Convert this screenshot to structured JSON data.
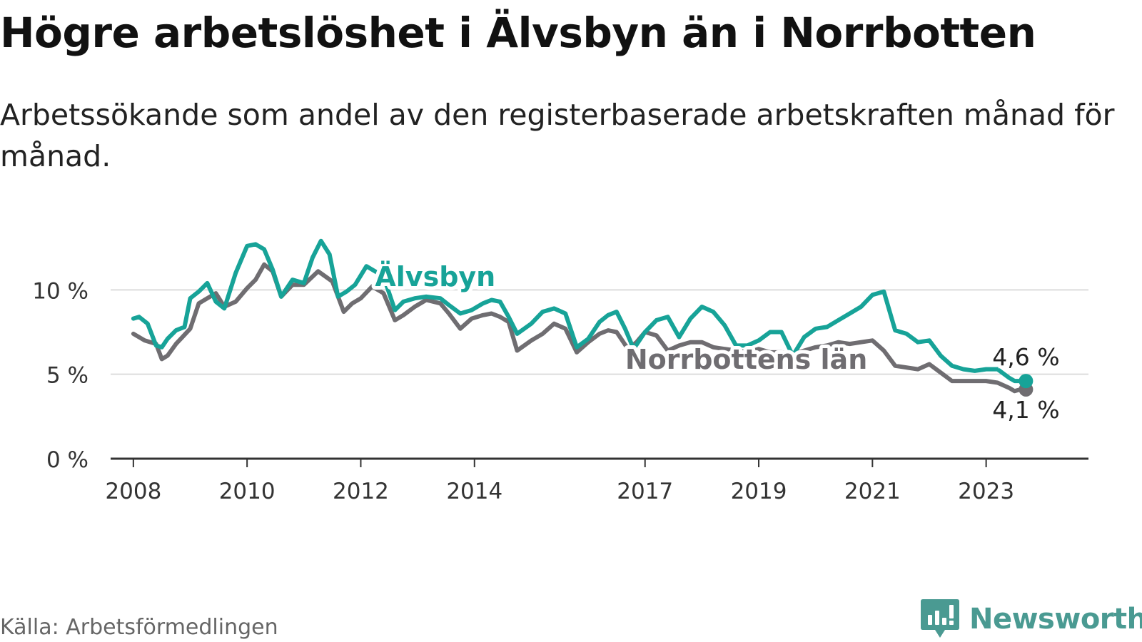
{
  "title": "Högre arbetslöshet i Älvsbyn än i Norrbotten",
  "subtitle": "Arbetssökande som andel av den registerbaserade arbetskraften månad för månad.",
  "source": "Källa: Arbetsförmedlingen",
  "brand": "Newsworthy",
  "colors": {
    "alvsbyn": "#17a398",
    "norrbotten": "#6f6d71",
    "grid": "#dcdcdc",
    "axis": "#333333",
    "brand": "#4a9a92"
  },
  "chart_data": {
    "type": "line",
    "title": "Högre arbetslöshet i Älvsbyn än i Norrbotten",
    "xlabel": "",
    "ylabel": "",
    "x_range": [
      2007.6,
      2024.8
    ],
    "ylim": [
      0,
      15
    ],
    "grid": true,
    "y_ticks": [
      {
        "value": 0,
        "label": "0 %"
      },
      {
        "value": 5,
        "label": "5 %"
      },
      {
        "value": 10,
        "label": "10 %"
      }
    ],
    "x_ticks": [
      {
        "value": 2008,
        "label": "2008"
      },
      {
        "value": 2010,
        "label": "2010"
      },
      {
        "value": 2012,
        "label": "2012"
      },
      {
        "value": 2014,
        "label": "2014"
      },
      {
        "value": 2017,
        "label": "2017"
      },
      {
        "value": 2019,
        "label": "2019"
      },
      {
        "value": 2021,
        "label": "2021"
      },
      {
        "value": 2023,
        "label": "2023"
      }
    ],
    "series": [
      {
        "name": "Norrbottens län",
        "label": "Norrbottens län",
        "color": "#6f6d71",
        "end_label": "4,1 %",
        "x": [
          2008.0,
          2008.2,
          2008.4,
          2008.5,
          2008.6,
          2008.75,
          2009.0,
          2009.15,
          2009.3,
          2009.45,
          2009.6,
          2009.8,
          2010.0,
          2010.15,
          2010.3,
          2010.45,
          2010.6,
          2010.8,
          2011.0,
          2011.25,
          2011.5,
          2011.7,
          2011.85,
          2012.0,
          2012.2,
          2012.4,
          2012.6,
          2012.75,
          2012.95,
          2013.15,
          2013.4,
          2013.55,
          2013.75,
          2013.95,
          2014.15,
          2014.3,
          2014.45,
          2014.6,
          2014.75,
          2015.0,
          2015.2,
          2015.4,
          2015.6,
          2015.8,
          2016.0,
          2016.2,
          2016.35,
          2016.5,
          2016.7,
          2016.85,
          2017.0,
          2017.2,
          2017.4,
          2017.6,
          2017.8,
          2018.0,
          2018.2,
          2018.4,
          2018.6,
          2018.8,
          2019.0,
          2019.2,
          2019.4,
          2019.6,
          2019.8,
          2020.0,
          2020.2,
          2020.4,
          2020.6,
          2020.8,
          2021.0,
          2021.2,
          2021.4,
          2021.6,
          2021.8,
          2022.0,
          2022.2,
          2022.4,
          2022.6,
          2022.8,
          2023.0,
          2023.2,
          2023.4,
          2023.5,
          2023.6,
          2023.7
        ],
        "y": [
          7.4,
          7.0,
          6.8,
          5.9,
          6.1,
          6.8,
          7.7,
          9.2,
          9.5,
          9.8,
          9.0,
          9.3,
          10.1,
          10.6,
          11.5,
          11.1,
          9.6,
          10.3,
          10.3,
          11.1,
          10.5,
          8.7,
          9.2,
          9.5,
          10.2,
          9.8,
          8.2,
          8.5,
          9.0,
          9.4,
          9.2,
          8.6,
          7.7,
          8.3,
          8.5,
          8.6,
          8.4,
          8.1,
          6.4,
          7.0,
          7.4,
          8.0,
          7.7,
          6.3,
          6.9,
          7.4,
          7.6,
          7.5,
          6.5,
          6.9,
          7.5,
          7.3,
          6.4,
          6.7,
          6.9,
          6.9,
          6.6,
          6.5,
          6.4,
          6.3,
          6.5,
          6.3,
          6.3,
          6.2,
          6.4,
          6.6,
          6.7,
          6.9,
          6.8,
          6.9,
          7.0,
          6.4,
          5.5,
          5.4,
          5.3,
          5.6,
          5.1,
          4.6,
          4.6,
          4.6,
          4.6,
          4.5,
          4.2,
          4.0,
          4.1,
          4.1
        ]
      },
      {
        "name": "Älvsbyn",
        "label": "Älvsbyn",
        "color": "#17a398",
        "end_label": "4,6 %",
        "x": [
          2008.0,
          2008.1,
          2008.25,
          2008.4,
          2008.5,
          2008.6,
          2008.75,
          2008.9,
          2009.0,
          2009.15,
          2009.3,
          2009.45,
          2009.6,
          2009.8,
          2010.0,
          2010.15,
          2010.3,
          2010.45,
          2010.6,
          2010.8,
          2011.0,
          2011.15,
          2011.3,
          2011.45,
          2011.6,
          2011.75,
          2011.9,
          2012.1,
          2012.2,
          2012.4,
          2012.6,
          2012.75,
          2012.95,
          2013.15,
          2013.4,
          2013.55,
          2013.75,
          2013.95,
          2014.15,
          2014.3,
          2014.45,
          2014.6,
          2014.75,
          2015.0,
          2015.2,
          2015.4,
          2015.6,
          2015.8,
          2016.0,
          2016.2,
          2016.35,
          2016.5,
          2016.65,
          2016.8,
          2017.0,
          2017.2,
          2017.4,
          2017.6,
          2017.8,
          2018.0,
          2018.2,
          2018.4,
          2018.6,
          2018.8,
          2019.0,
          2019.2,
          2019.4,
          2019.6,
          2019.8,
          2020.0,
          2020.2,
          2020.4,
          2020.6,
          2020.8,
          2021.0,
          2021.2,
          2021.4,
          2021.6,
          2021.8,
          2022.0,
          2022.2,
          2022.4,
          2022.6,
          2022.8,
          2023.0,
          2023.2,
          2023.4,
          2023.5,
          2023.6,
          2023.7
        ],
        "y": [
          8.3,
          8.4,
          8.0,
          6.7,
          6.6,
          7.1,
          7.6,
          7.8,
          9.5,
          9.9,
          10.4,
          9.3,
          8.9,
          11.0,
          12.6,
          12.7,
          12.4,
          11.2,
          9.6,
          10.6,
          10.4,
          11.9,
          12.9,
          12.1,
          9.6,
          9.9,
          10.3,
          11.4,
          11.2,
          10.8,
          8.8,
          9.3,
          9.5,
          9.6,
          9.5,
          9.1,
          8.6,
          8.8,
          9.2,
          9.4,
          9.3,
          8.4,
          7.4,
          8.0,
          8.7,
          8.9,
          8.6,
          6.6,
          7.1,
          8.1,
          8.5,
          8.7,
          7.7,
          6.5,
          7.5,
          8.2,
          8.4,
          7.2,
          8.3,
          9.0,
          8.7,
          7.9,
          6.7,
          6.7,
          7.0,
          7.5,
          7.5,
          6.1,
          7.2,
          7.7,
          7.8,
          8.2,
          8.6,
          9.0,
          9.7,
          9.9,
          7.6,
          7.4,
          6.9,
          7.0,
          6.1,
          5.5,
          5.3,
          5.2,
          5.3,
          5.3,
          4.8,
          4.6,
          4.6,
          4.6
        ]
      }
    ]
  }
}
